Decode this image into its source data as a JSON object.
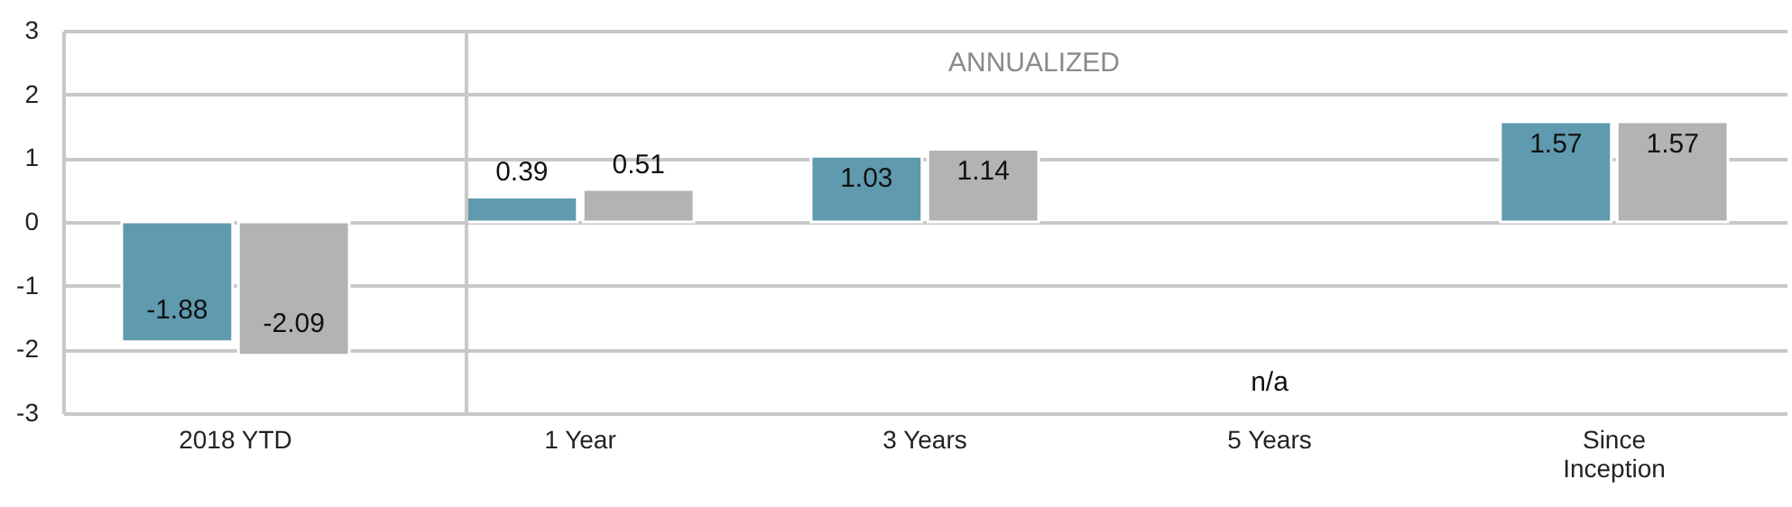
{
  "chart_data": {
    "type": "bar",
    "categories": [
      "2018 YTD",
      "1 Year",
      "3 Years",
      "5 Years",
      "Since Inception"
    ],
    "series": [
      {
        "color": "#5f9aae",
        "values": [
          -1.88,
          0.39,
          1.03,
          null,
          1.57
        ]
      },
      {
        "color": "#b3b3b3",
        "values": [
          -2.09,
          0.51,
          1.14,
          null,
          1.57
        ]
      }
    ],
    "ylim": [
      -3,
      3
    ],
    "yticks": [
      -3,
      -2,
      -1,
      0,
      1,
      2,
      3
    ],
    "grid": "y",
    "data_labels": true,
    "annotations": [
      "ANNUALIZED",
      "n/a"
    ]
  }
}
